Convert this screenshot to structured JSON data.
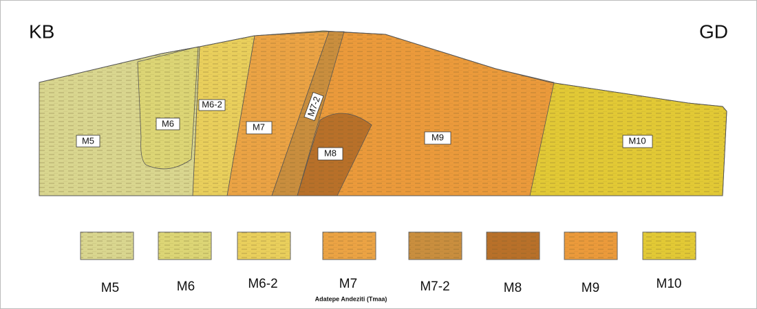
{
  "corner_labels": {
    "left": "KB",
    "right": "GD"
  },
  "section_labels": [
    "M5",
    "M6",
    "M6-2",
    "M7",
    "M7-2",
    "M8",
    "M9",
    "M10"
  ],
  "legend": {
    "items": [
      "M5",
      "M6",
      "M6-2",
      "M7",
      "M7-2",
      "M8",
      "M9",
      "M10"
    ],
    "caption": "Adatepe Andeziti (Tmaa)"
  }
}
